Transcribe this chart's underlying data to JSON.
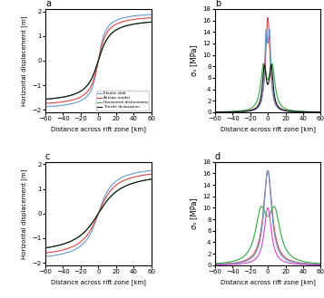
{
  "x_range": [
    -60,
    60
  ],
  "n_points": 1000,
  "D_ab": 7,
  "D_cd": 14,
  "title_a": "a",
  "title_b": "b",
  "title_c": "c",
  "title_d": "d",
  "xlabel": "Distance across rift zone [km]",
  "ylabel_disp": "Horizontal displacement [m]",
  "ylabel_stress": "σₛ [MPa]",
  "legend_labels": [
    "Elastic slab",
    "Arctan model",
    "Horizontal dislocations",
    "Tensile dislocation"
  ],
  "colors": {
    "elastic_slab": "#6699cc",
    "arctan": "#dd4444",
    "horizontal_disl": "#33aa44",
    "tensile_disl": "#111111"
  },
  "ylim_disp": [
    -2.1,
    2.1
  ],
  "ylim_stress": [
    0,
    18
  ],
  "yticks_disp": [
    -2,
    -1,
    0,
    1,
    2
  ],
  "yticks_stress": [
    0,
    2,
    4,
    6,
    8,
    10,
    12,
    14,
    16,
    18
  ],
  "xticks": [
    -60,
    -40,
    -20,
    0,
    20,
    40,
    60
  ]
}
